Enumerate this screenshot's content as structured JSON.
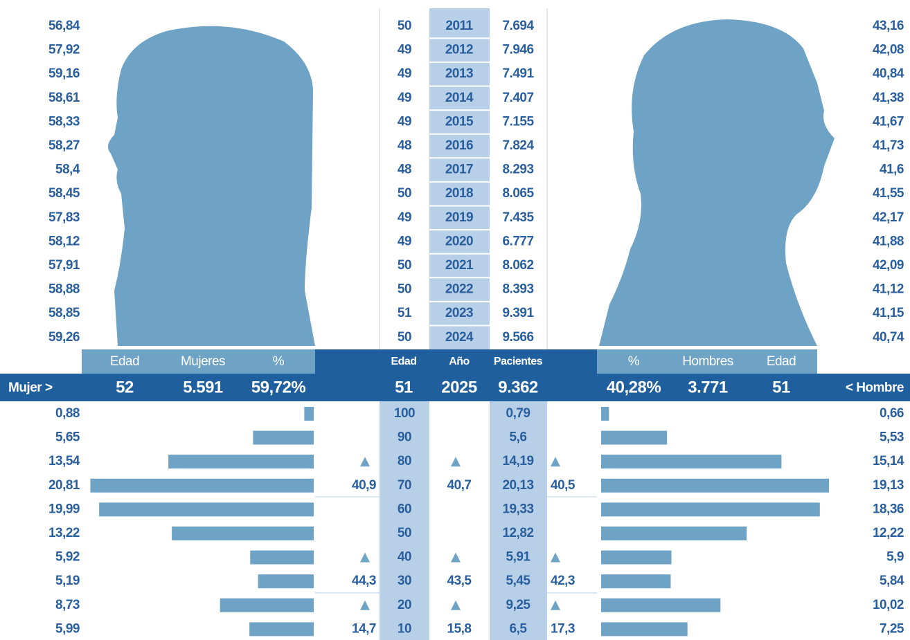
{
  "women_pct": [
    "56,84",
    "57,92",
    "59,16",
    "58,61",
    "58,33",
    "58,27",
    "58,4",
    "58,45",
    "57,83",
    "58,12",
    "57,91",
    "58,88",
    "58,85",
    "59,26"
  ],
  "years": [
    {
      "edad": "50",
      "year": "2011",
      "pacientes": "7.694"
    },
    {
      "edad": "49",
      "year": "2012",
      "pacientes": "7.946"
    },
    {
      "edad": "49",
      "year": "2013",
      "pacientes": "7.491"
    },
    {
      "edad": "49",
      "year": "2014",
      "pacientes": "7.407"
    },
    {
      "edad": "49",
      "year": "2015",
      "pacientes": "7.155"
    },
    {
      "edad": "48",
      "year": "2016",
      "pacientes": "7.824"
    },
    {
      "edad": "48",
      "year": "2017",
      "pacientes": "8.293"
    },
    {
      "edad": "50",
      "year": "2018",
      "pacientes": "8.065"
    },
    {
      "edad": "49",
      "year": "2019",
      "pacientes": "7.435"
    },
    {
      "edad": "49",
      "year": "2020",
      "pacientes": "6.777"
    },
    {
      "edad": "50",
      "year": "2021",
      "pacientes": "8.062"
    },
    {
      "edad": "50",
      "year": "2022",
      "pacientes": "8.393"
    },
    {
      "edad": "51",
      "year": "2023",
      "pacientes": "9.391"
    },
    {
      "edad": "50",
      "year": "2024",
      "pacientes": "9.566"
    }
  ],
  "men_pct": [
    "43,16",
    "42,08",
    "40,84",
    "41,38",
    "41,67",
    "41,73",
    "41,6",
    "41,55",
    "42,17",
    "41,88",
    "42,09",
    "41,12",
    "41,15",
    "40,74"
  ],
  "header": [
    "Edad",
    "Mujeres",
    "%",
    "Edad",
    "Año",
    "Pacientes",
    "%",
    "Hombres",
    "Edad"
  ],
  "summary": {
    "left_label": "Mujer >",
    "cells": [
      "52",
      "5.591",
      "59,72%",
      "51",
      "2025",
      "9.362",
      "40,28%",
      "3.771",
      "51"
    ],
    "right_label": "< Hombre"
  },
  "age_groups": [
    {
      "age": "100",
      "women": {
        "value": 0.88,
        "label": "0,88"
      },
      "total": "0,79",
      "men": {
        "value": 0.66,
        "label": "0,66"
      }
    },
    {
      "age": "90",
      "women": {
        "value": 5.65,
        "label": "5,65"
      },
      "total": "5,6",
      "men": {
        "value": 5.53,
        "label": "5,53"
      }
    },
    {
      "age": "80",
      "women": {
        "value": 13.54,
        "label": "13,54"
      },
      "total": "14,19",
      "men": {
        "value": 15.14,
        "label": "15,14"
      }
    },
    {
      "age": "70",
      "women": {
        "value": 20.81,
        "label": "20,81"
      },
      "total": "20,13",
      "men": {
        "value": 19.13,
        "label": "19,13"
      }
    },
    {
      "age": "60",
      "women": {
        "value": 19.99,
        "label": "19,99"
      },
      "total": "19,33",
      "men": {
        "value": 18.36,
        "label": "18,36"
      }
    },
    {
      "age": "50",
      "women": {
        "value": 13.22,
        "label": "13,22"
      },
      "total": "12,82",
      "men": {
        "value": 12.22,
        "label": "12,22"
      }
    },
    {
      "age": "40",
      "women": {
        "value": 5.92,
        "label": "5,92"
      },
      "total": "5,91",
      "men": {
        "value": 5.9,
        "label": "5,9"
      }
    },
    {
      "age": "30",
      "women": {
        "value": 5.19,
        "label": "5,19"
      },
      "total": "5,45",
      "men": {
        "value": 5.84,
        "label": "5,84"
      }
    },
    {
      "age": "20",
      "women": {
        "value": 8.73,
        "label": "8,73"
      },
      "total": "9,25",
      "men": {
        "value": 10.02,
        "label": "10,02"
      }
    },
    {
      "age": "10",
      "women": {
        "value": 5.99,
        "label": "5,99"
      },
      "total": "6,5",
      "men": {
        "value": 7.25,
        "label": "7,25"
      }
    }
  ],
  "averages": [
    {
      "women": "40,9",
      "total": "40,7",
      "men": "40,5"
    },
    {
      "women": "44,3",
      "total": "43,5",
      "men": "42,3"
    },
    {
      "women": "14,7",
      "total": "15,8",
      "men": "17,3"
    }
  ]
}
